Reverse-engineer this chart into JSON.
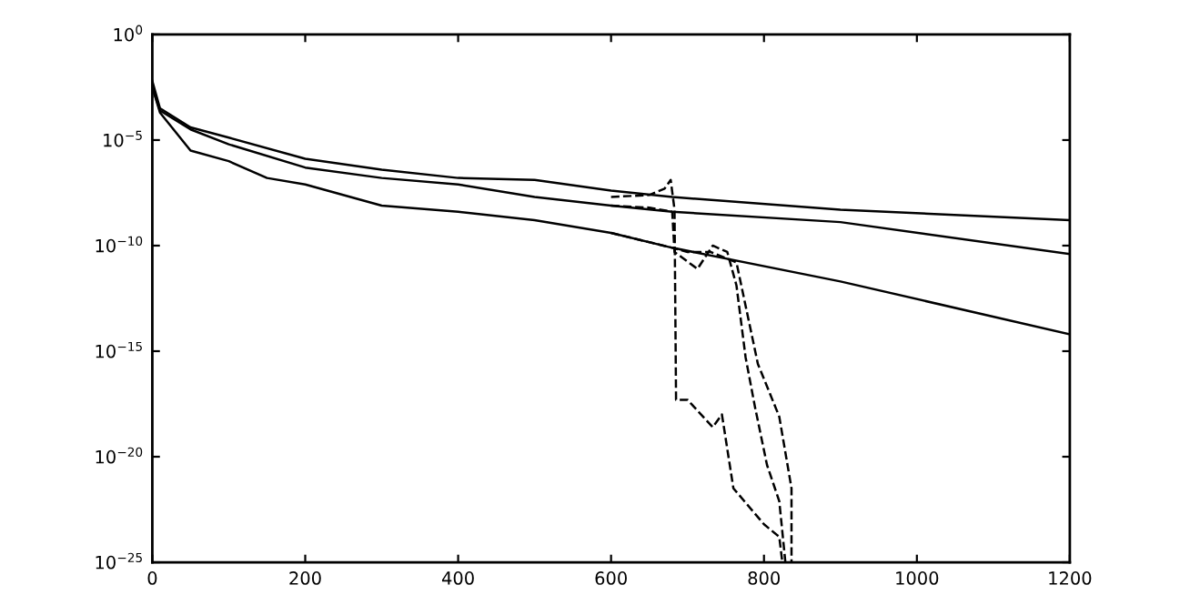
{
  "chart_data": {
    "type": "line",
    "log": "y",
    "grid": false,
    "legend": false,
    "marker": "none",
    "xlim": [
      0,
      1200
    ],
    "xticks": [
      0,
      200,
      400,
      600,
      800,
      1000,
      1200
    ],
    "ylim": [
      1e-25,
      1
    ],
    "yticks": [
      {
        "value": 1e-25,
        "label": "10$^{−25}$"
      },
      {
        "value": 1e-20,
        "label": "10$^{−20}$"
      },
      {
        "value": 1e-15,
        "label": "10$^{−15}$"
      },
      {
        "value": 1e-10,
        "label": "10$^{−10}$"
      },
      {
        "value": 1e-05,
        "label": "10$^{−5}$"
      },
      {
        "value": 1,
        "label": "10$^{0}$"
      }
    ],
    "series": [
      {
        "color": "#000000",
        "line_style": "solid",
        "x": [
          0,
          10,
          50,
          100,
          200,
          300,
          400,
          500,
          600,
          680,
          900,
          1200
        ],
        "values": [
          0.0063,
          0.00032,
          4e-05,
          1.3e-05,
          1.3e-06,
          4e-07,
          1.6e-07,
          1.3e-07,
          4e-08,
          2e-08,
          5e-09,
          1.6e-09
        ]
      },
      {
        "color": "#000000",
        "line_style": "solid",
        "x": [
          0,
          10,
          50,
          100,
          200,
          300,
          400,
          500,
          600,
          680,
          900,
          1200
        ],
        "values": [
          0.0032,
          0.00025,
          3.2e-05,
          6.3e-06,
          5e-07,
          1.6e-07,
          7.9e-08,
          2e-08,
          7.9e-09,
          4e-09,
          1.3e-09,
          4e-11
        ]
      },
      {
        "color": "#000000",
        "line_style": "solid",
        "x": [
          0,
          10,
          50,
          100,
          150,
          200,
          300,
          400,
          500,
          600,
          680,
          900,
          1200
        ],
        "values": [
          0.0032,
          0.0002,
          3.2e-06,
          1e-06,
          1.6e-07,
          7.9e-08,
          7.9e-09,
          4e-09,
          1.6e-09,
          4e-10,
          7.9e-11,
          2e-12,
          6.3e-15
        ]
      },
      {
        "color": "#000000",
        "line_style": "dashed",
        "x": [
          600,
          650,
          670,
          678,
          683,
          685,
          700,
          733,
          745,
          760,
          800,
          820,
          824
        ],
        "values": [
          2e-08,
          2.5e-08,
          5e-08,
          1.3e-07,
          5e-09,
          5e-18,
          5e-18,
          2.5e-19,
          1e-18,
          3.2e-22,
          6.3e-24,
          1.6e-24,
          1e-25
        ]
      },
      {
        "color": "#000000",
        "line_style": "dashed",
        "x": [
          600,
          650,
          680,
          683,
          713,
          733,
          752,
          764,
          776,
          788,
          804,
          820,
          828
        ],
        "values": [
          7.9e-09,
          6.3e-09,
          4e-09,
          5e-11,
          7.9e-12,
          1e-10,
          5e-11,
          1.3e-12,
          5e-16,
          2.5e-18,
          4e-21,
          7.9e-23,
          1e-25
        ]
      },
      {
        "color": "#000000",
        "line_style": "dashed",
        "x": [
          600,
          680,
          700,
          730,
          764,
          792,
          820,
          836,
          836
        ],
        "values": [
          4e-10,
          7.9e-11,
          5e-11,
          5e-11,
          1.6e-11,
          2.5e-16,
          7.9e-19,
          3.2e-22,
          1e-25
        ]
      }
    ]
  }
}
